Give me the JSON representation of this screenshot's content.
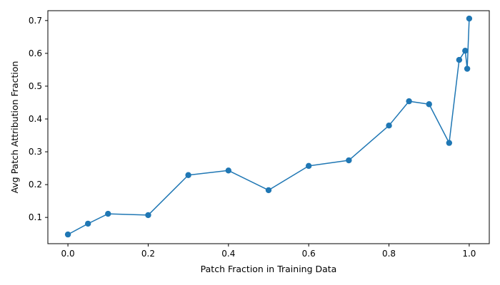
{
  "chart_data": {
    "type": "line",
    "title": "",
    "xlabel": "Patch Fraction in Training Data",
    "ylabel": "Avg Patch Attribution Fraction",
    "xlim": [
      -0.05,
      1.05
    ],
    "ylim": [
      0.02,
      0.73
    ],
    "xticks": [
      0.0,
      0.2,
      0.4,
      0.6,
      0.8,
      1.0
    ],
    "xtick_labels": [
      "0.0",
      "0.2",
      "0.4",
      "0.6",
      "0.8",
      "1.0"
    ],
    "yticks": [
      0.1,
      0.2,
      0.3,
      0.4,
      0.5,
      0.6,
      0.7
    ],
    "ytick_labels": [
      "0.1",
      "0.2",
      "0.3",
      "0.4",
      "0.5",
      "0.6",
      "0.7"
    ],
    "grid": false,
    "series": [
      {
        "color": "#1f77b4",
        "marker": "circle",
        "x": [
          0.0,
          0.05,
          0.1,
          0.2,
          0.3,
          0.4,
          0.5,
          0.6,
          0.7,
          0.8,
          0.85,
          0.9,
          0.95,
          0.975,
          0.99,
          0.995,
          1.0
        ],
        "y": [
          0.048,
          0.081,
          0.111,
          0.107,
          0.229,
          0.243,
          0.183,
          0.257,
          0.274,
          0.38,
          0.454,
          0.445,
          0.327,
          0.58,
          0.608,
          0.553,
          0.706
        ]
      }
    ]
  }
}
